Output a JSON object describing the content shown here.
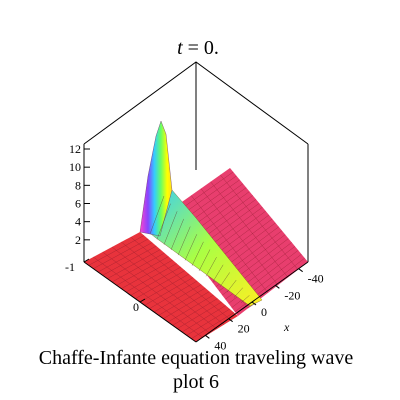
{
  "chart_data": {
    "type": "surface3d",
    "title_var": "t",
    "title_rest": " = 0.",
    "caption_line1": "Chaffe-Infante equation  traveling wave",
    "caption_line2": "plot 6",
    "z_ticks": [
      "2",
      "4",
      "6",
      "8",
      "10",
      "12"
    ],
    "left_ticks": [
      "-1",
      "0"
    ],
    "x_ticks": [
      "-40",
      "-20",
      "0",
      "20",
      "40"
    ],
    "x_label": "x",
    "surface_colors": {
      "front_plane": "#e8333c",
      "back_plane": "#e83e6e",
      "grid_line": "#8a1a2a",
      "peak_gradient": [
        "#ffff00",
        "#66ff66",
        "#33ccff",
        "#8844ff",
        "#ff44cc"
      ]
    }
  }
}
